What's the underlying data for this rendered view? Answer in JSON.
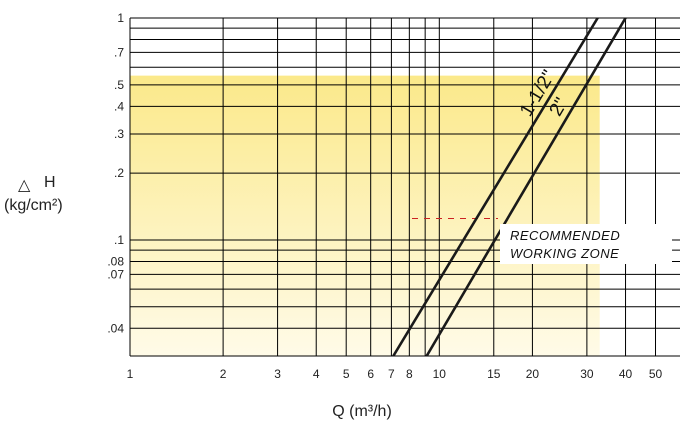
{
  "chart_data": {
    "type": "line",
    "x_scale": "log",
    "y_scale": "log",
    "xlabel": "Q (m³/h)",
    "ylabel_symbol": "△",
    "ylabel_var": "H",
    "ylabel_unit": "(kg/cm²)",
    "xlim": [
      1,
      60
    ],
    "ylim": [
      0.03,
      1
    ],
    "grid": true,
    "x_ticks": [
      {
        "value": 1,
        "label": "1"
      },
      {
        "value": 2,
        "label": "2"
      },
      {
        "value": 3,
        "label": "3"
      },
      {
        "value": 4,
        "label": "4"
      },
      {
        "value": 5,
        "label": "5"
      },
      {
        "value": 6,
        "label": "6"
      },
      {
        "value": 7,
        "label": "7"
      },
      {
        "value": 8,
        "label": "8"
      },
      {
        "value": 10,
        "label": "10"
      },
      {
        "value": 15,
        "label": "15"
      },
      {
        "value": 20,
        "label": "20"
      },
      {
        "value": 30,
        "label": "30"
      },
      {
        "value": 40,
        "label": "40"
      },
      {
        "value": 50,
        "label": "50"
      }
    ],
    "x_gridlines": [
      7,
      8,
      9,
      10
    ],
    "y_ticks": [
      {
        "value": 1,
        "label": "1"
      },
      {
        "value": 0.7,
        "label": ".7"
      },
      {
        "value": 0.5,
        "label": ".5"
      },
      {
        "value": 0.4,
        "label": ".4"
      },
      {
        "value": 0.3,
        "label": ".3"
      },
      {
        "value": 0.2,
        "label": ".2"
      },
      {
        "value": 0.1,
        "label": ".1"
      },
      {
        "value": 0.08,
        "label": ".08"
      },
      {
        "value": 0.07,
        "label": ".07"
      },
      {
        "value": 0.04,
        "label": ".04"
      }
    ],
    "y_gridlines": [
      0.9,
      0.8,
      0.6,
      0.09,
      0.06,
      0.05
    ],
    "series": [
      {
        "name": "1-1/2\"",
        "x": [
          7.1,
          32.5
        ],
        "y": [
          0.03,
          1.0
        ]
      },
      {
        "name": "2\"",
        "x": [
          9.1,
          40.0
        ],
        "y": [
          0.03,
          1.0
        ]
      }
    ],
    "recommended_zone": {
      "label_line1": "RECOMMENDED",
      "label_line2": "WORKING ZONE",
      "x_max": 33,
      "y_max": 0.55
    },
    "colors": {
      "zone_top": "#fbe98a",
      "zone_bottom": "#fffbe8",
      "grid": "#000000",
      "series": "#1a1a1a",
      "marker": "#cc2222"
    }
  }
}
